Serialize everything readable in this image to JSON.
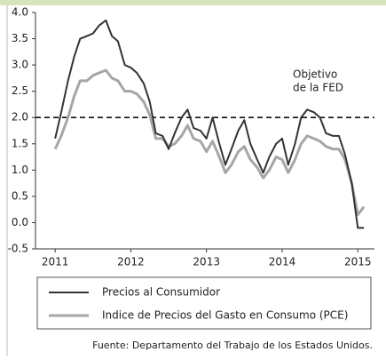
{
  "chart_data": {
    "type": "line",
    "annotation": [
      "Objetivo",
      "de la FED"
    ],
    "reference_value": 2,
    "source": "Fuente:  Departamento del Trabajo de los Estados Unidos.",
    "x": [
      2011,
      2011.08,
      2011.17,
      2011.25,
      2011.33,
      2011.42,
      2011.5,
      2011.58,
      2011.67,
      2011.75,
      2011.83,
      2011.92,
      2012,
      2012.08,
      2012.17,
      2012.25,
      2012.33,
      2012.42,
      2012.5,
      2012.58,
      2012.67,
      2012.75,
      2012.83,
      2012.92,
      2013,
      2013.08,
      2013.17,
      2013.25,
      2013.33,
      2013.42,
      2013.5,
      2013.58,
      2013.67,
      2013.75,
      2013.83,
      2013.92,
      2014,
      2014.08,
      2014.17,
      2014.25,
      2014.33,
      2014.42,
      2014.5,
      2014.58,
      2014.67,
      2014.75,
      2014.83,
      2014.92,
      2015,
      2015.08
    ],
    "series": [
      {
        "name": "Precios al Consumidor",
        "color": "#333333",
        "values": [
          1.6,
          2.1,
          2.7,
          3.15,
          3.5,
          3.55,
          3.6,
          3.75,
          3.85,
          3.55,
          3.45,
          3.0,
          2.95,
          2.85,
          2.65,
          2.3,
          1.7,
          1.65,
          1.4,
          1.7,
          2.0,
          2.15,
          1.8,
          1.75,
          1.6,
          2.0,
          1.5,
          1.1,
          1.4,
          1.75,
          1.95,
          1.5,
          1.2,
          0.95,
          1.25,
          1.5,
          1.6,
          1.1,
          1.5,
          2.0,
          2.15,
          2.1,
          2.0,
          1.7,
          1.65,
          1.65,
          1.3,
          0.75,
          -0.1,
          -0.1
        ]
      },
      {
        "name": "Indice de Precios del Gasto en Consumo (PCE)",
        "color": "#a6a6a6",
        "values": [
          1.4,
          1.65,
          2.0,
          2.4,
          2.7,
          2.7,
          2.8,
          2.85,
          2.9,
          2.75,
          2.7,
          2.5,
          2.5,
          2.45,
          2.3,
          2.05,
          1.6,
          1.6,
          1.45,
          1.5,
          1.65,
          1.85,
          1.6,
          1.55,
          1.35,
          1.55,
          1.25,
          0.95,
          1.1,
          1.35,
          1.45,
          1.2,
          1.05,
          0.85,
          1.0,
          1.25,
          1.2,
          0.95,
          1.2,
          1.5,
          1.65,
          1.6,
          1.55,
          1.45,
          1.4,
          1.4,
          1.2,
          0.75,
          0.15,
          0.3
        ]
      }
    ],
    "xlim": [
      2010.74,
      2015.22
    ],
    "xticks": [
      2011,
      2012,
      2013,
      2014,
      2015
    ],
    "ylim": [
      -0.5,
      4
    ],
    "yticks": [
      -0.5,
      {
        "value": 0,
        "label": "0.0"
      },
      0.5,
      {
        "value": 1,
        "label": "1.0"
      },
      1.5,
      {
        "value": 2,
        "label": "2.0"
      },
      2.5,
      {
        "value": 3,
        "label": "3.0"
      },
      3.5,
      {
        "value": 4,
        "label": "4.0"
      }
    ]
  }
}
